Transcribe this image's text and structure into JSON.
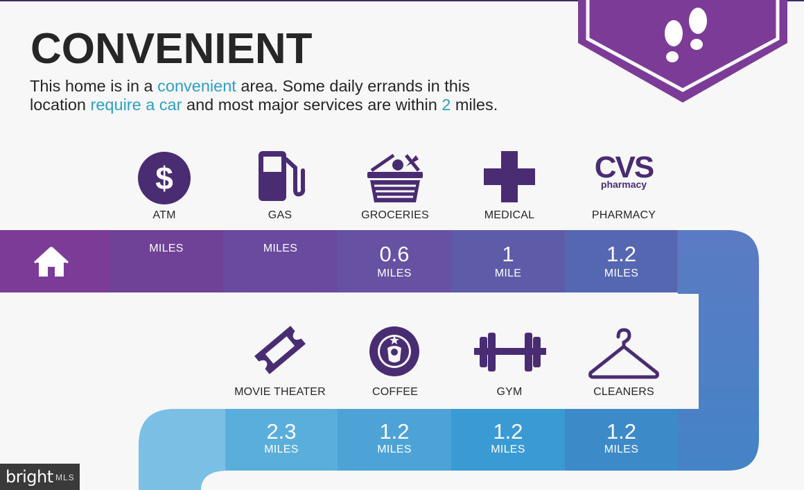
{
  "header": {
    "title": "CONVENIENT",
    "desc_part1": "This home is in a ",
    "desc_hl1": "convenient",
    "desc_part2": " area. Some daily errands in this",
    "desc_part3": "location ",
    "desc_hl2": "require a car",
    "desc_part4": " and most major services are within ",
    "desc_hl3": "2",
    "desc_part5": " miles."
  },
  "colors": {
    "accent": "#2e9fc1",
    "purple": "#4a2c72",
    "band_purple": "#7b3b96"
  },
  "row1": [
    {
      "label": "ATM",
      "icon": "dollar-circle-icon",
      "value": "",
      "unit": "MILES"
    },
    {
      "label": "GAS",
      "icon": "gas-pump-icon",
      "value": "",
      "unit": "MILES"
    },
    {
      "label": "GROCERIES",
      "icon": "grocery-basket-icon",
      "value": "0.6",
      "unit": "MILES"
    },
    {
      "label": "MEDICAL",
      "icon": "medical-cross-icon",
      "value": "1",
      "unit": "MILE"
    },
    {
      "label": "PHARMACY",
      "icon": "cvs-logo-icon",
      "logo_main": "CVS",
      "logo_sub": "pharmacy",
      "value": "1.2",
      "unit": "MILES"
    }
  ],
  "row2": [
    {
      "label": "MOVIE THEATER",
      "icon": "ticket-icon",
      "value": "2.3",
      "unit": "MILES"
    },
    {
      "label": "COFFEE",
      "icon": "starbucks-logo-icon",
      "value": "1.2",
      "unit": "MILES"
    },
    {
      "label": "GYM",
      "icon": "dumbbell-icon",
      "value": "1.2",
      "unit": "MILES"
    },
    {
      "label": "CLEANERS",
      "icon": "hanger-icon",
      "value": "1.2",
      "unit": "MILES"
    }
  ],
  "home_icon": "home-icon",
  "badge_icon": "footprints-icon",
  "watermark": {
    "brand": "bright",
    "suffix": "MLS"
  }
}
